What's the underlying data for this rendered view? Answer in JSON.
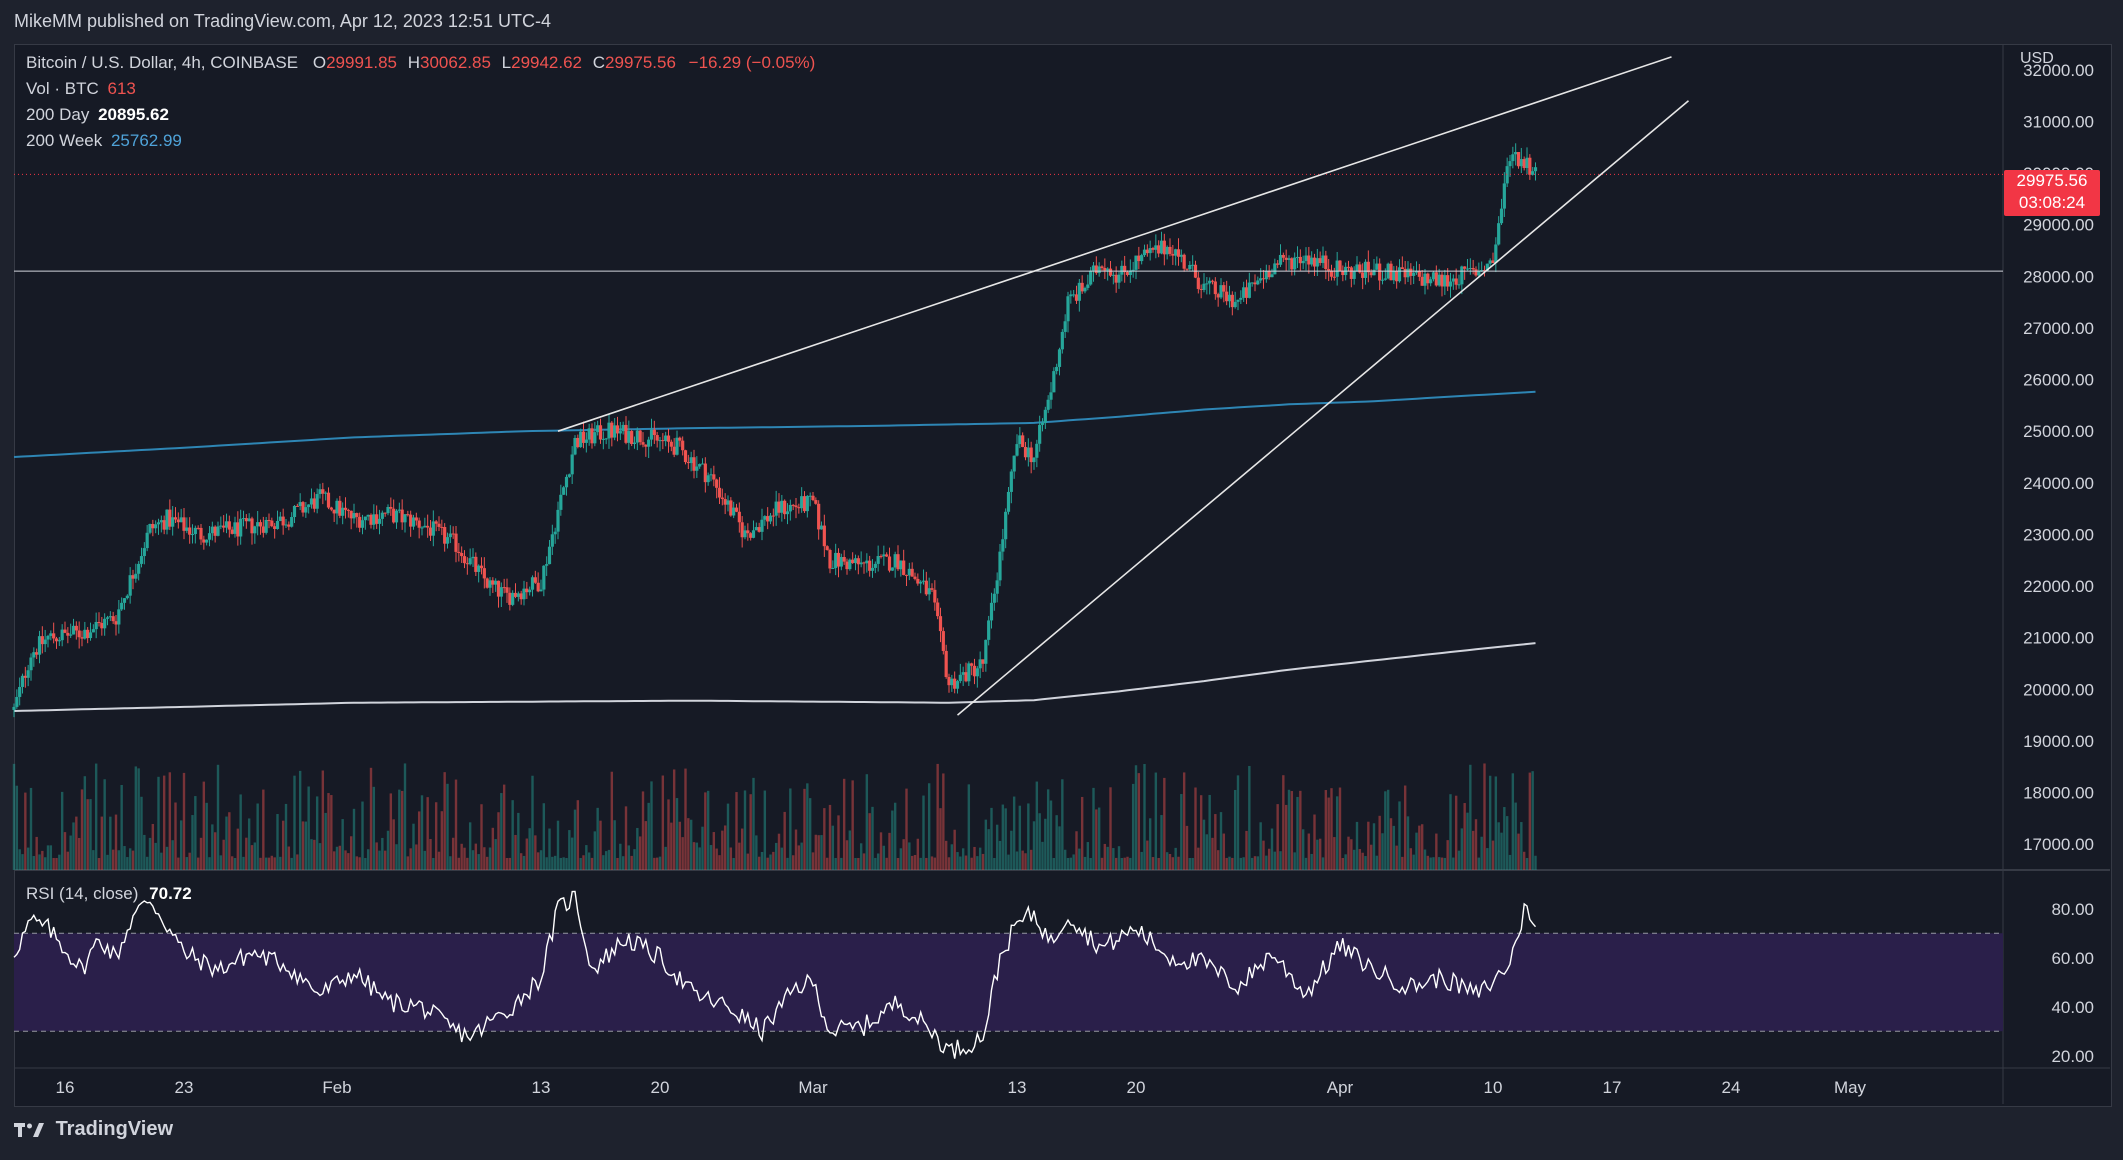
{
  "header": {
    "published": "MikeMM published on TradingView.com, Apr 12, 2023 12:51 UTC-4"
  },
  "legend": {
    "symbol": "Bitcoin / U.S. Dollar, 4h, COINBASE",
    "open_label": "O",
    "open": "29991.85",
    "high_label": "H",
    "high": "30062.85",
    "low_label": "L",
    "low": "29942.62",
    "close_label": "C",
    "close": "29975.56",
    "change": "−16.29 (−0.05%)",
    "vol_label": "Vol · BTC",
    "vol": "613",
    "ma200d_label": "200 Day",
    "ma200d": "20895.62",
    "ma200w_label": "200 Week",
    "ma200w": "25762.99"
  },
  "price_scale": {
    "currency": "USD",
    "last_price": "29975.56",
    "countdown": "03:08:24"
  },
  "rsi": {
    "label": "RSI (14, close)",
    "value": "70.72"
  },
  "footer": {
    "brand": "TradingView"
  },
  "colors": {
    "bg": "#161a25",
    "up": "#26a69a",
    "down": "#ef5350",
    "ma200w": "#2e86b5",
    "ma200d": "#d1d4dc",
    "rsi_band": "#2a1f4a",
    "rsi_line": "#ffffff",
    "badge": "#f23645"
  },
  "chart_data": [
    {
      "type": "candlestick",
      "title": "Bitcoin / U.S. Dollar, 4h, COINBASE",
      "ylabel": "USD",
      "ylim": [
        16500,
        32500
      ],
      "y_ticks": [
        17000,
        18000,
        19000,
        20000,
        21000,
        22000,
        23000,
        24000,
        25000,
        26000,
        27000,
        28000,
        29000,
        30000,
        31000,
        32000
      ],
      "y_tick_labels": [
        "17000.00",
        "18000.00",
        "19000.00",
        "20000.00",
        "21000.00",
        "22000.00",
        "23000.00",
        "24000.00",
        "25000.00",
        "26000.00",
        "27000.00",
        "28000.00",
        "29000.00",
        "30000.00",
        "31000.00",
        "32000.00"
      ],
      "x_range_days": [
        0,
        117
      ],
      "x_ticks": [
        {
          "label": "16",
          "day": 3
        },
        {
          "label": "23",
          "day": 10
        },
        {
          "label": "Feb",
          "day": 19
        },
        {
          "label": "13",
          "day": 31
        },
        {
          "label": "20",
          "day": 38
        },
        {
          "label": "Mar",
          "day": 47
        },
        {
          "label": "13",
          "day": 59
        },
        {
          "label": "20",
          "day": 66
        },
        {
          "label": "Apr",
          "day": 78
        },
        {
          "label": "10",
          "day": 87
        },
        {
          "label": "17",
          "day": 94
        },
        {
          "label": "24",
          "day": 101
        },
        {
          "label": "May",
          "day": 108
        }
      ],
      "price_path_days": [
        0,
        1,
        2,
        4,
        6,
        8,
        9,
        11,
        13,
        16,
        18,
        20,
        22,
        24,
        26,
        28,
        29,
        31,
        33,
        35,
        37,
        39,
        41,
        43,
        45,
        47,
        48,
        50,
        52,
        54,
        55,
        56,
        57,
        58,
        59,
        60,
        61,
        62,
        63,
        64,
        65,
        66,
        68,
        70,
        72,
        74,
        76,
        78,
        80,
        82,
        84,
        86,
        87,
        88,
        89,
        89.5
      ],
      "price_path_values": [
        19600,
        20700,
        21000,
        21100,
        21400,
        23100,
        23300,
        23000,
        23100,
        23300,
        23700,
        23300,
        23400,
        23200,
        22800,
        22000,
        21800,
        22100,
        24800,
        25000,
        24900,
        24700,
        24100,
        23000,
        23500,
        23600,
        22500,
        22400,
        22500,
        21800,
        20100,
        20300,
        20500,
        22600,
        24800,
        24500,
        25800,
        27500,
        27800,
        28300,
        28000,
        28300,
        28600,
        27800,
        27500,
        28200,
        28400,
        28100,
        28100,
        28000,
        27900,
        28100,
        28300,
        30400,
        30200,
        29975.56
      ],
      "ma_200_day": {
        "name": "200 Day",
        "days": [
          0,
          20,
          40,
          55,
          60,
          65,
          70,
          75,
          80,
          85,
          89.5
        ],
        "values": [
          19580,
          19740,
          19780,
          19740,
          19790,
          19960,
          20160,
          20380,
          20560,
          20740,
          20895.62
        ]
      },
      "ma_200_week": {
        "name": "200 Week",
        "days": [
          0,
          10,
          20,
          30,
          40,
          50,
          60,
          65,
          70,
          75,
          80,
          85,
          89.5
        ],
        "values": [
          24500,
          24680,
          24880,
          25000,
          25060,
          25100,
          25160,
          25280,
          25420,
          25520,
          25580,
          25680,
          25762.99
        ]
      },
      "horizontal_line": 28100,
      "trendlines": [
        {
          "from": {
            "day": 32,
            "price": 25000
          },
          "to": {
            "day": 97.5,
            "price": 32250
          }
        },
        {
          "from": {
            "day": 55.5,
            "price": 19500
          },
          "to": {
            "day": 98.5,
            "price": 31400
          }
        }
      ]
    },
    {
      "type": "line",
      "title": "RSI (14, close)",
      "ylim": [
        15,
        95
      ],
      "y_ticks": [
        20,
        40,
        60,
        80
      ],
      "y_tick_labels": [
        "20.00",
        "40.00",
        "60.00",
        "80.00"
      ],
      "bands": [
        30,
        70
      ],
      "x_days": [
        0,
        1,
        2,
        4,
        5,
        6,
        7,
        8,
        10,
        12,
        14,
        16,
        18,
        20,
        22,
        24,
        26,
        27,
        28,
        29,
        31,
        32,
        33,
        34,
        36,
        38,
        40,
        42,
        44,
        46,
        47,
        48,
        50,
        52,
        54,
        55,
        56,
        57,
        58,
        59,
        60,
        61,
        62,
        63,
        64,
        66,
        68,
        70,
        72,
        74,
        76,
        78,
        80,
        82,
        84,
        86,
        87,
        88,
        89,
        89.5
      ],
      "values": [
        62,
        75,
        72,
        55,
        68,
        60,
        77,
        84,
        62,
        55,
        62,
        57,
        45,
        54,
        42,
        40,
        30,
        28,
        34,
        38,
        52,
        80,
        85,
        55,
        68,
        60,
        45,
        40,
        30,
        48,
        50,
        30,
        32,
        42,
        30,
        22,
        24,
        28,
        60,
        74,
        78,
        66,
        78,
        70,
        64,
        72,
        60,
        58,
        48,
        62,
        45,
        65,
        55,
        48,
        52,
        45,
        50,
        58,
        83,
        70.72
      ]
    }
  ]
}
